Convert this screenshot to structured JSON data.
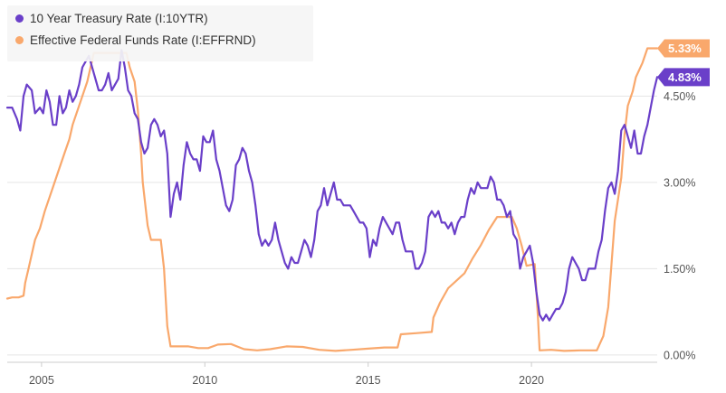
{
  "chart_data": {
    "type": "line",
    "title": "",
    "xlabel": "",
    "ylabel": "",
    "xlim": [
      2003.95,
      2023.85
    ],
    "ylim": [
      -0.08,
      5.95
    ],
    "x_ticks": [
      2005,
      2010,
      2015,
      2020
    ],
    "y_ticks": [
      0.0,
      1.5,
      3.0,
      4.5
    ],
    "x_tick_labels": [
      "2005",
      "2010",
      "2015",
      "2020"
    ],
    "y_tick_labels": [
      "0.00%",
      "1.50%",
      "3.00%",
      "4.50%"
    ],
    "grid": "horizontal",
    "legend_position": "top-left",
    "series": [
      {
        "name": "10 Year Treasury Rate (I:10YTR)",
        "color": "#6a3fc9",
        "end_label": "4.83%",
        "points": [
          [
            2003.95,
            4.3
          ],
          [
            2004.1,
            4.3
          ],
          [
            2004.25,
            4.1
          ],
          [
            2004.35,
            3.9
          ],
          [
            2004.45,
            4.5
          ],
          [
            2004.55,
            4.7
          ],
          [
            2004.7,
            4.6
          ],
          [
            2004.8,
            4.2
          ],
          [
            2004.95,
            4.3
          ],
          [
            2005.05,
            4.2
          ],
          [
            2005.15,
            4.6
          ],
          [
            2005.25,
            4.4
          ],
          [
            2005.35,
            4.0
          ],
          [
            2005.45,
            4.0
          ],
          [
            2005.55,
            4.5
          ],
          [
            2005.65,
            4.2
          ],
          [
            2005.75,
            4.3
          ],
          [
            2005.85,
            4.6
          ],
          [
            2005.95,
            4.4
          ],
          [
            2006.05,
            4.5
          ],
          [
            2006.15,
            4.7
          ],
          [
            2006.25,
            5.0
          ],
          [
            2006.35,
            5.1
          ],
          [
            2006.45,
            5.2
          ],
          [
            2006.55,
            5.0
          ],
          [
            2006.65,
            4.8
          ],
          [
            2006.75,
            4.6
          ],
          [
            2006.85,
            4.6
          ],
          [
            2006.95,
            4.7
          ],
          [
            2007.05,
            4.9
          ],
          [
            2007.15,
            4.6
          ],
          [
            2007.25,
            4.7
          ],
          [
            2007.35,
            4.8
          ],
          [
            2007.45,
            5.3
          ],
          [
            2007.55,
            5.0
          ],
          [
            2007.65,
            4.6
          ],
          [
            2007.75,
            4.5
          ],
          [
            2007.85,
            4.2
          ],
          [
            2007.95,
            4.1
          ],
          [
            2008.05,
            3.7
          ],
          [
            2008.15,
            3.5
          ],
          [
            2008.25,
            3.6
          ],
          [
            2008.35,
            4.0
          ],
          [
            2008.45,
            4.1
          ],
          [
            2008.55,
            4.0
          ],
          [
            2008.65,
            3.8
          ],
          [
            2008.75,
            3.9
          ],
          [
            2008.85,
            3.5
          ],
          [
            2008.95,
            2.4
          ],
          [
            2009.05,
            2.8
          ],
          [
            2009.15,
            3.0
          ],
          [
            2009.25,
            2.7
          ],
          [
            2009.35,
            3.3
          ],
          [
            2009.45,
            3.7
          ],
          [
            2009.55,
            3.5
          ],
          [
            2009.65,
            3.4
          ],
          [
            2009.75,
            3.4
          ],
          [
            2009.85,
            3.2
          ],
          [
            2009.95,
            3.8
          ],
          [
            2010.05,
            3.7
          ],
          [
            2010.15,
            3.7
          ],
          [
            2010.25,
            3.9
          ],
          [
            2010.35,
            3.4
          ],
          [
            2010.45,
            3.2
          ],
          [
            2010.55,
            2.9
          ],
          [
            2010.65,
            2.6
          ],
          [
            2010.75,
            2.5
          ],
          [
            2010.85,
            2.7
          ],
          [
            2010.95,
            3.3
          ],
          [
            2011.05,
            3.4
          ],
          [
            2011.15,
            3.6
          ],
          [
            2011.25,
            3.5
          ],
          [
            2011.35,
            3.2
          ],
          [
            2011.45,
            3.0
          ],
          [
            2011.55,
            2.6
          ],
          [
            2011.65,
            2.1
          ],
          [
            2011.75,
            1.9
          ],
          [
            2011.85,
            2.0
          ],
          [
            2011.95,
            1.9
          ],
          [
            2012.05,
            2.0
          ],
          [
            2012.15,
            2.3
          ],
          [
            2012.25,
            2.0
          ],
          [
            2012.35,
            1.8
          ],
          [
            2012.45,
            1.6
          ],
          [
            2012.55,
            1.5
          ],
          [
            2012.65,
            1.7
          ],
          [
            2012.75,
            1.6
          ],
          [
            2012.85,
            1.6
          ],
          [
            2012.95,
            1.8
          ],
          [
            2013.05,
            2.0
          ],
          [
            2013.15,
            1.9
          ],
          [
            2013.25,
            1.7
          ],
          [
            2013.35,
            2.0
          ],
          [
            2013.45,
            2.5
          ],
          [
            2013.55,
            2.6
          ],
          [
            2013.65,
            2.9
          ],
          [
            2013.75,
            2.6
          ],
          [
            2013.85,
            2.8
          ],
          [
            2013.95,
            3.0
          ],
          [
            2014.05,
            2.7
          ],
          [
            2014.15,
            2.7
          ],
          [
            2014.25,
            2.6
          ],
          [
            2014.35,
            2.6
          ],
          [
            2014.45,
            2.6
          ],
          [
            2014.55,
            2.5
          ],
          [
            2014.65,
            2.4
          ],
          [
            2014.75,
            2.3
          ],
          [
            2014.85,
            2.3
          ],
          [
            2014.95,
            2.2
          ],
          [
            2015.05,
            1.7
          ],
          [
            2015.15,
            2.0
          ],
          [
            2015.25,
            1.9
          ],
          [
            2015.35,
            2.2
          ],
          [
            2015.45,
            2.4
          ],
          [
            2015.55,
            2.3
          ],
          [
            2015.65,
            2.2
          ],
          [
            2015.75,
            2.1
          ],
          [
            2015.85,
            2.3
          ],
          [
            2015.95,
            2.3
          ],
          [
            2016.05,
            2.0
          ],
          [
            2016.15,
            1.8
          ],
          [
            2016.25,
            1.8
          ],
          [
            2016.35,
            1.8
          ],
          [
            2016.45,
            1.5
          ],
          [
            2016.55,
            1.5
          ],
          [
            2016.65,
            1.6
          ],
          [
            2016.75,
            1.8
          ],
          [
            2016.85,
            2.4
          ],
          [
            2016.95,
            2.5
          ],
          [
            2017.05,
            2.4
          ],
          [
            2017.15,
            2.5
          ],
          [
            2017.25,
            2.3
          ],
          [
            2017.35,
            2.3
          ],
          [
            2017.45,
            2.2
          ],
          [
            2017.55,
            2.3
          ],
          [
            2017.65,
            2.1
          ],
          [
            2017.75,
            2.3
          ],
          [
            2017.85,
            2.4
          ],
          [
            2017.95,
            2.4
          ],
          [
            2018.05,
            2.7
          ],
          [
            2018.15,
            2.9
          ],
          [
            2018.25,
            2.8
          ],
          [
            2018.35,
            3.0
          ],
          [
            2018.45,
            2.9
          ],
          [
            2018.55,
            2.9
          ],
          [
            2018.65,
            2.9
          ],
          [
            2018.75,
            3.1
          ],
          [
            2018.85,
            3.0
          ],
          [
            2018.95,
            2.7
          ],
          [
            2019.05,
            2.7
          ],
          [
            2019.15,
            2.6
          ],
          [
            2019.25,
            2.4
          ],
          [
            2019.35,
            2.5
          ],
          [
            2019.45,
            2.1
          ],
          [
            2019.55,
            2.0
          ],
          [
            2019.65,
            1.5
          ],
          [
            2019.75,
            1.7
          ],
          [
            2019.85,
            1.8
          ],
          [
            2019.95,
            1.9
          ],
          [
            2020.05,
            1.6
          ],
          [
            2020.15,
            1.1
          ],
          [
            2020.25,
            0.7
          ],
          [
            2020.35,
            0.6
          ],
          [
            2020.45,
            0.7
          ],
          [
            2020.55,
            0.6
          ],
          [
            2020.65,
            0.7
          ],
          [
            2020.75,
            0.8
          ],
          [
            2020.85,
            0.8
          ],
          [
            2020.95,
            0.9
          ],
          [
            2021.05,
            1.1
          ],
          [
            2021.15,
            1.5
          ],
          [
            2021.25,
            1.7
          ],
          [
            2021.35,
            1.6
          ],
          [
            2021.45,
            1.5
          ],
          [
            2021.55,
            1.3
          ],
          [
            2021.65,
            1.3
          ],
          [
            2021.75,
            1.5
          ],
          [
            2021.85,
            1.5
          ],
          [
            2021.95,
            1.5
          ],
          [
            2022.05,
            1.8
          ],
          [
            2022.15,
            2.0
          ],
          [
            2022.25,
            2.5
          ],
          [
            2022.35,
            2.9
          ],
          [
            2022.45,
            3.0
          ],
          [
            2022.55,
            2.8
          ],
          [
            2022.65,
            3.2
          ],
          [
            2022.75,
            3.9
          ],
          [
            2022.85,
            4.0
          ],
          [
            2022.95,
            3.8
          ],
          [
            2023.05,
            3.6
          ],
          [
            2023.15,
            3.9
          ],
          [
            2023.25,
            3.5
          ],
          [
            2023.35,
            3.5
          ],
          [
            2023.45,
            3.8
          ],
          [
            2023.55,
            4.0
          ],
          [
            2023.65,
            4.3
          ],
          [
            2023.75,
            4.6
          ],
          [
            2023.85,
            4.83
          ]
        ]
      },
      {
        "name": "Effective Federal Funds Rate (I:EFFRND)",
        "color": "#f9a86c",
        "end_label": "5.33%",
        "points": [
          [
            2003.95,
            0.98
          ],
          [
            2004.1,
            1.0
          ],
          [
            2004.3,
            1.0
          ],
          [
            2004.45,
            1.03
          ],
          [
            2004.5,
            1.25
          ],
          [
            2004.6,
            1.5
          ],
          [
            2004.7,
            1.75
          ],
          [
            2004.8,
            2.0
          ],
          [
            2004.95,
            2.2
          ],
          [
            2005.1,
            2.5
          ],
          [
            2005.25,
            2.75
          ],
          [
            2005.4,
            3.0
          ],
          [
            2005.55,
            3.25
          ],
          [
            2005.7,
            3.5
          ],
          [
            2005.85,
            3.75
          ],
          [
            2005.95,
            4.0
          ],
          [
            2006.1,
            4.25
          ],
          [
            2006.25,
            4.5
          ],
          [
            2006.4,
            4.75
          ],
          [
            2006.5,
            5.0
          ],
          [
            2006.6,
            5.25
          ],
          [
            2006.8,
            5.25
          ],
          [
            2007.0,
            5.25
          ],
          [
            2007.3,
            5.25
          ],
          [
            2007.6,
            5.25
          ],
          [
            2007.7,
            5.0
          ],
          [
            2007.85,
            4.75
          ],
          [
            2007.95,
            4.25
          ],
          [
            2008.05,
            3.5
          ],
          [
            2008.1,
            3.0
          ],
          [
            2008.25,
            2.25
          ],
          [
            2008.35,
            2.0
          ],
          [
            2008.5,
            2.0
          ],
          [
            2008.65,
            2.0
          ],
          [
            2008.75,
            1.5
          ],
          [
            2008.85,
            0.5
          ],
          [
            2008.95,
            0.15
          ],
          [
            2009.2,
            0.15
          ],
          [
            2009.5,
            0.15
          ],
          [
            2009.8,
            0.12
          ],
          [
            2010.1,
            0.12
          ],
          [
            2010.4,
            0.18
          ],
          [
            2010.8,
            0.19
          ],
          [
            2011.2,
            0.1
          ],
          [
            2011.6,
            0.08
          ],
          [
            2012.0,
            0.1
          ],
          [
            2012.5,
            0.15
          ],
          [
            2013.0,
            0.14
          ],
          [
            2013.5,
            0.09
          ],
          [
            2014.0,
            0.07
          ],
          [
            2014.5,
            0.09
          ],
          [
            2015.0,
            0.11
          ],
          [
            2015.5,
            0.13
          ],
          [
            2015.9,
            0.13
          ],
          [
            2016.0,
            0.36
          ],
          [
            2016.5,
            0.38
          ],
          [
            2016.95,
            0.4
          ],
          [
            2017.0,
            0.65
          ],
          [
            2017.2,
            0.91
          ],
          [
            2017.45,
            1.16
          ],
          [
            2017.95,
            1.42
          ],
          [
            2018.2,
            1.68
          ],
          [
            2018.45,
            1.91
          ],
          [
            2018.7,
            2.18
          ],
          [
            2018.95,
            2.4
          ],
          [
            2019.4,
            2.4
          ],
          [
            2019.55,
            2.2
          ],
          [
            2019.7,
            1.9
          ],
          [
            2019.85,
            1.55
          ],
          [
            2020.1,
            1.58
          ],
          [
            2020.2,
            0.65
          ],
          [
            2020.25,
            0.08
          ],
          [
            2020.6,
            0.09
          ],
          [
            2021.0,
            0.07
          ],
          [
            2021.5,
            0.08
          ],
          [
            2022.0,
            0.08
          ],
          [
            2022.2,
            0.33
          ],
          [
            2022.35,
            0.83
          ],
          [
            2022.45,
            1.58
          ],
          [
            2022.55,
            2.33
          ],
          [
            2022.75,
            3.08
          ],
          [
            2022.85,
            3.83
          ],
          [
            2022.95,
            4.33
          ],
          [
            2023.1,
            4.58
          ],
          [
            2023.2,
            4.83
          ],
          [
            2023.4,
            5.08
          ],
          [
            2023.55,
            5.33
          ],
          [
            2023.85,
            5.33
          ]
        ]
      }
    ]
  }
}
